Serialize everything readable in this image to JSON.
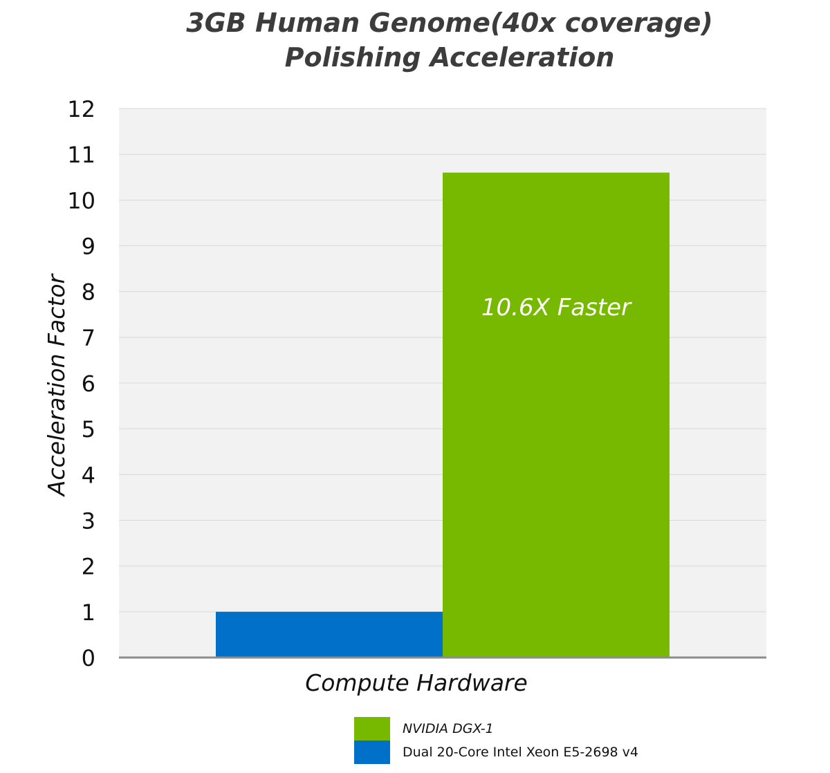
{
  "title": {
    "line1": "3GB Human Genome(40x coverage)",
    "line2": "Polishing Acceleration"
  },
  "chart_data": {
    "type": "bar",
    "title": "3GB Human Genome(40x coverage) Polishing Acceleration",
    "xlabel": "Compute Hardware",
    "ylabel": "Acceleration Factor",
    "ylim": [
      0,
      12
    ],
    "yticks": [
      0,
      1,
      2,
      3,
      4,
      5,
      6,
      7,
      8,
      9,
      10,
      11,
      12
    ],
    "grid": true,
    "legend_position": "bottom",
    "categories": [
      "Compute Hardware"
    ],
    "series": [
      {
        "name": "Dual 20-Core Intel Xeon E5-2698 v4",
        "values": [
          1
        ],
        "color": "#0070c8"
      },
      {
        "name": "NVIDIA DGX-1",
        "values": [
          10.6
        ],
        "color": "#76b900"
      }
    ],
    "annotations": [
      {
        "series": "NVIDIA DGX-1",
        "text": "10.6X Faster"
      }
    ]
  },
  "legend": [
    {
      "name": "NVIDIA DGX-1",
      "color": "#76b900",
      "italic": true
    },
    {
      "name": "Dual 20-Core Intel Xeon E5-2698 v4",
      "color": "#0070c8",
      "italic": false
    }
  ],
  "colors": {
    "plot_background": "#f2f2f2",
    "gridline": "#d9d9d9",
    "baseline": "#8c8c8c"
  }
}
